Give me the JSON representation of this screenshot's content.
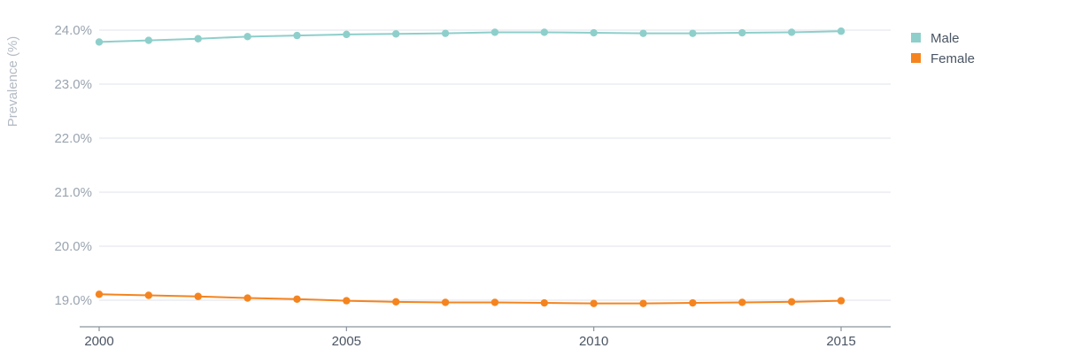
{
  "chart_data": {
    "type": "line",
    "ylabel": "Prevalence (%)",
    "xlabel": "",
    "ylim": [
      18.5,
      24.2
    ],
    "xlim": [
      2000,
      2016
    ],
    "y_ticks": [
      {
        "value": 19.0,
        "label": "19.0%"
      },
      {
        "value": 20.0,
        "label": "20.0%"
      },
      {
        "value": 21.0,
        "label": "21.0%"
      },
      {
        "value": 22.0,
        "label": "22.0%"
      },
      {
        "value": 23.0,
        "label": "23.0%"
      },
      {
        "value": 24.0,
        "label": "24.0%"
      }
    ],
    "x_ticks": [
      {
        "value": 2000,
        "label": "2000"
      },
      {
        "value": 2005,
        "label": "2005"
      },
      {
        "value": 2010,
        "label": "2010"
      },
      {
        "value": 2015,
        "label": "2015"
      }
    ],
    "grid": true,
    "legend_position": "top-right",
    "x": [
      2000,
      2001,
      2002,
      2003,
      2004,
      2005,
      2006,
      2007,
      2008,
      2009,
      2010,
      2011,
      2012,
      2013,
      2014,
      2015
    ],
    "series": [
      {
        "name": "Male",
        "color": "#8ecfcb",
        "values": [
          23.78,
          23.81,
          23.84,
          23.88,
          23.9,
          23.92,
          23.93,
          23.94,
          23.96,
          23.96,
          23.95,
          23.94,
          23.94,
          23.95,
          23.96,
          23.98
        ]
      },
      {
        "name": "Female",
        "color": "#f5841f",
        "values": [
          19.11,
          19.09,
          19.07,
          19.04,
          19.02,
          18.99,
          18.97,
          18.96,
          18.96,
          18.95,
          18.94,
          18.94,
          18.95,
          18.96,
          18.97,
          18.99
        ]
      }
    ]
  }
}
